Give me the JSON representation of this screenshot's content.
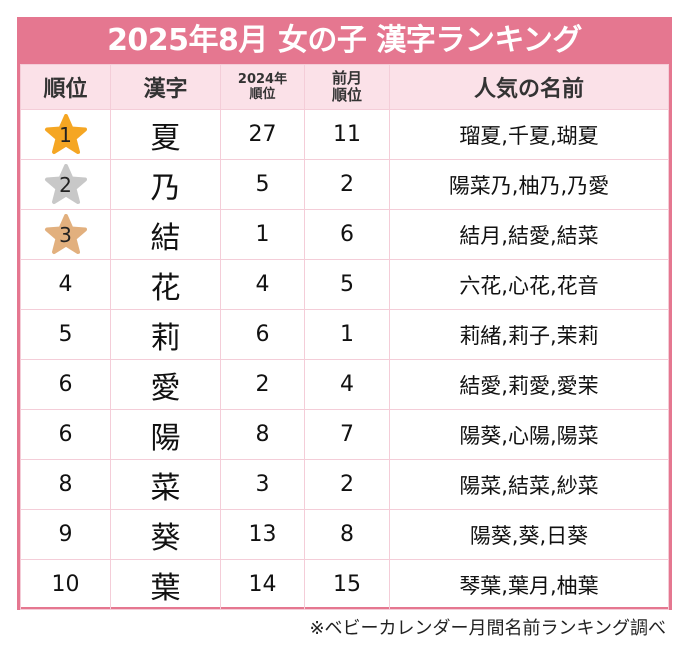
{
  "title": "2025年8月 女の子 漢字ランキング",
  "colors": {
    "accent": "#e57790",
    "header_bg": "#fbe1e8",
    "grid": "#f4cdd8",
    "gold": "#f5a623",
    "silver": "#c8c8c8",
    "bronze": "#e2b07e"
  },
  "headers": {
    "rank": "順位",
    "kanji": "漢字",
    "prev_year_line1": "2024年",
    "prev_year_line2": "順位",
    "prev_month_line1": "前月",
    "prev_month_line2": "順位",
    "names": "人気の名前"
  },
  "rows": [
    {
      "rank": "1",
      "medal": "gold",
      "kanji": "夏",
      "y2024": "27",
      "prev_month": "11",
      "names": "瑠夏,千夏,瑚夏"
    },
    {
      "rank": "2",
      "medal": "silver",
      "kanji": "乃",
      "y2024": "5",
      "prev_month": "2",
      "names": "陽菜乃,柚乃,乃愛"
    },
    {
      "rank": "3",
      "medal": "bronze",
      "kanji": "結",
      "y2024": "1",
      "prev_month": "6",
      "names": "結月,結愛,結菜"
    },
    {
      "rank": "4",
      "kanji": "花",
      "y2024": "4",
      "prev_month": "5",
      "names": "六花,心花,花音"
    },
    {
      "rank": "5",
      "kanji": "莉",
      "y2024": "6",
      "prev_month": "1",
      "names": "莉緒,莉子,茉莉"
    },
    {
      "rank": "6",
      "kanji": "愛",
      "y2024": "2",
      "prev_month": "4",
      "names": "結愛,莉愛,愛茉"
    },
    {
      "rank": "6",
      "kanji": "陽",
      "y2024": "8",
      "prev_month": "7",
      "names": "陽葵,心陽,陽菜"
    },
    {
      "rank": "8",
      "kanji": "菜",
      "y2024": "3",
      "prev_month": "2",
      "names": "陽菜,結菜,紗菜"
    },
    {
      "rank": "9",
      "kanji": "葵",
      "y2024": "13",
      "prev_month": "8",
      "names": "陽葵,葵,日葵"
    },
    {
      "rank": "10",
      "kanji": "葉",
      "y2024": "14",
      "prev_month": "15",
      "names": "琴葉,葉月,柚葉"
    }
  ],
  "footnote": "※ベビーカレンダー月間名前ランキング調べ"
}
